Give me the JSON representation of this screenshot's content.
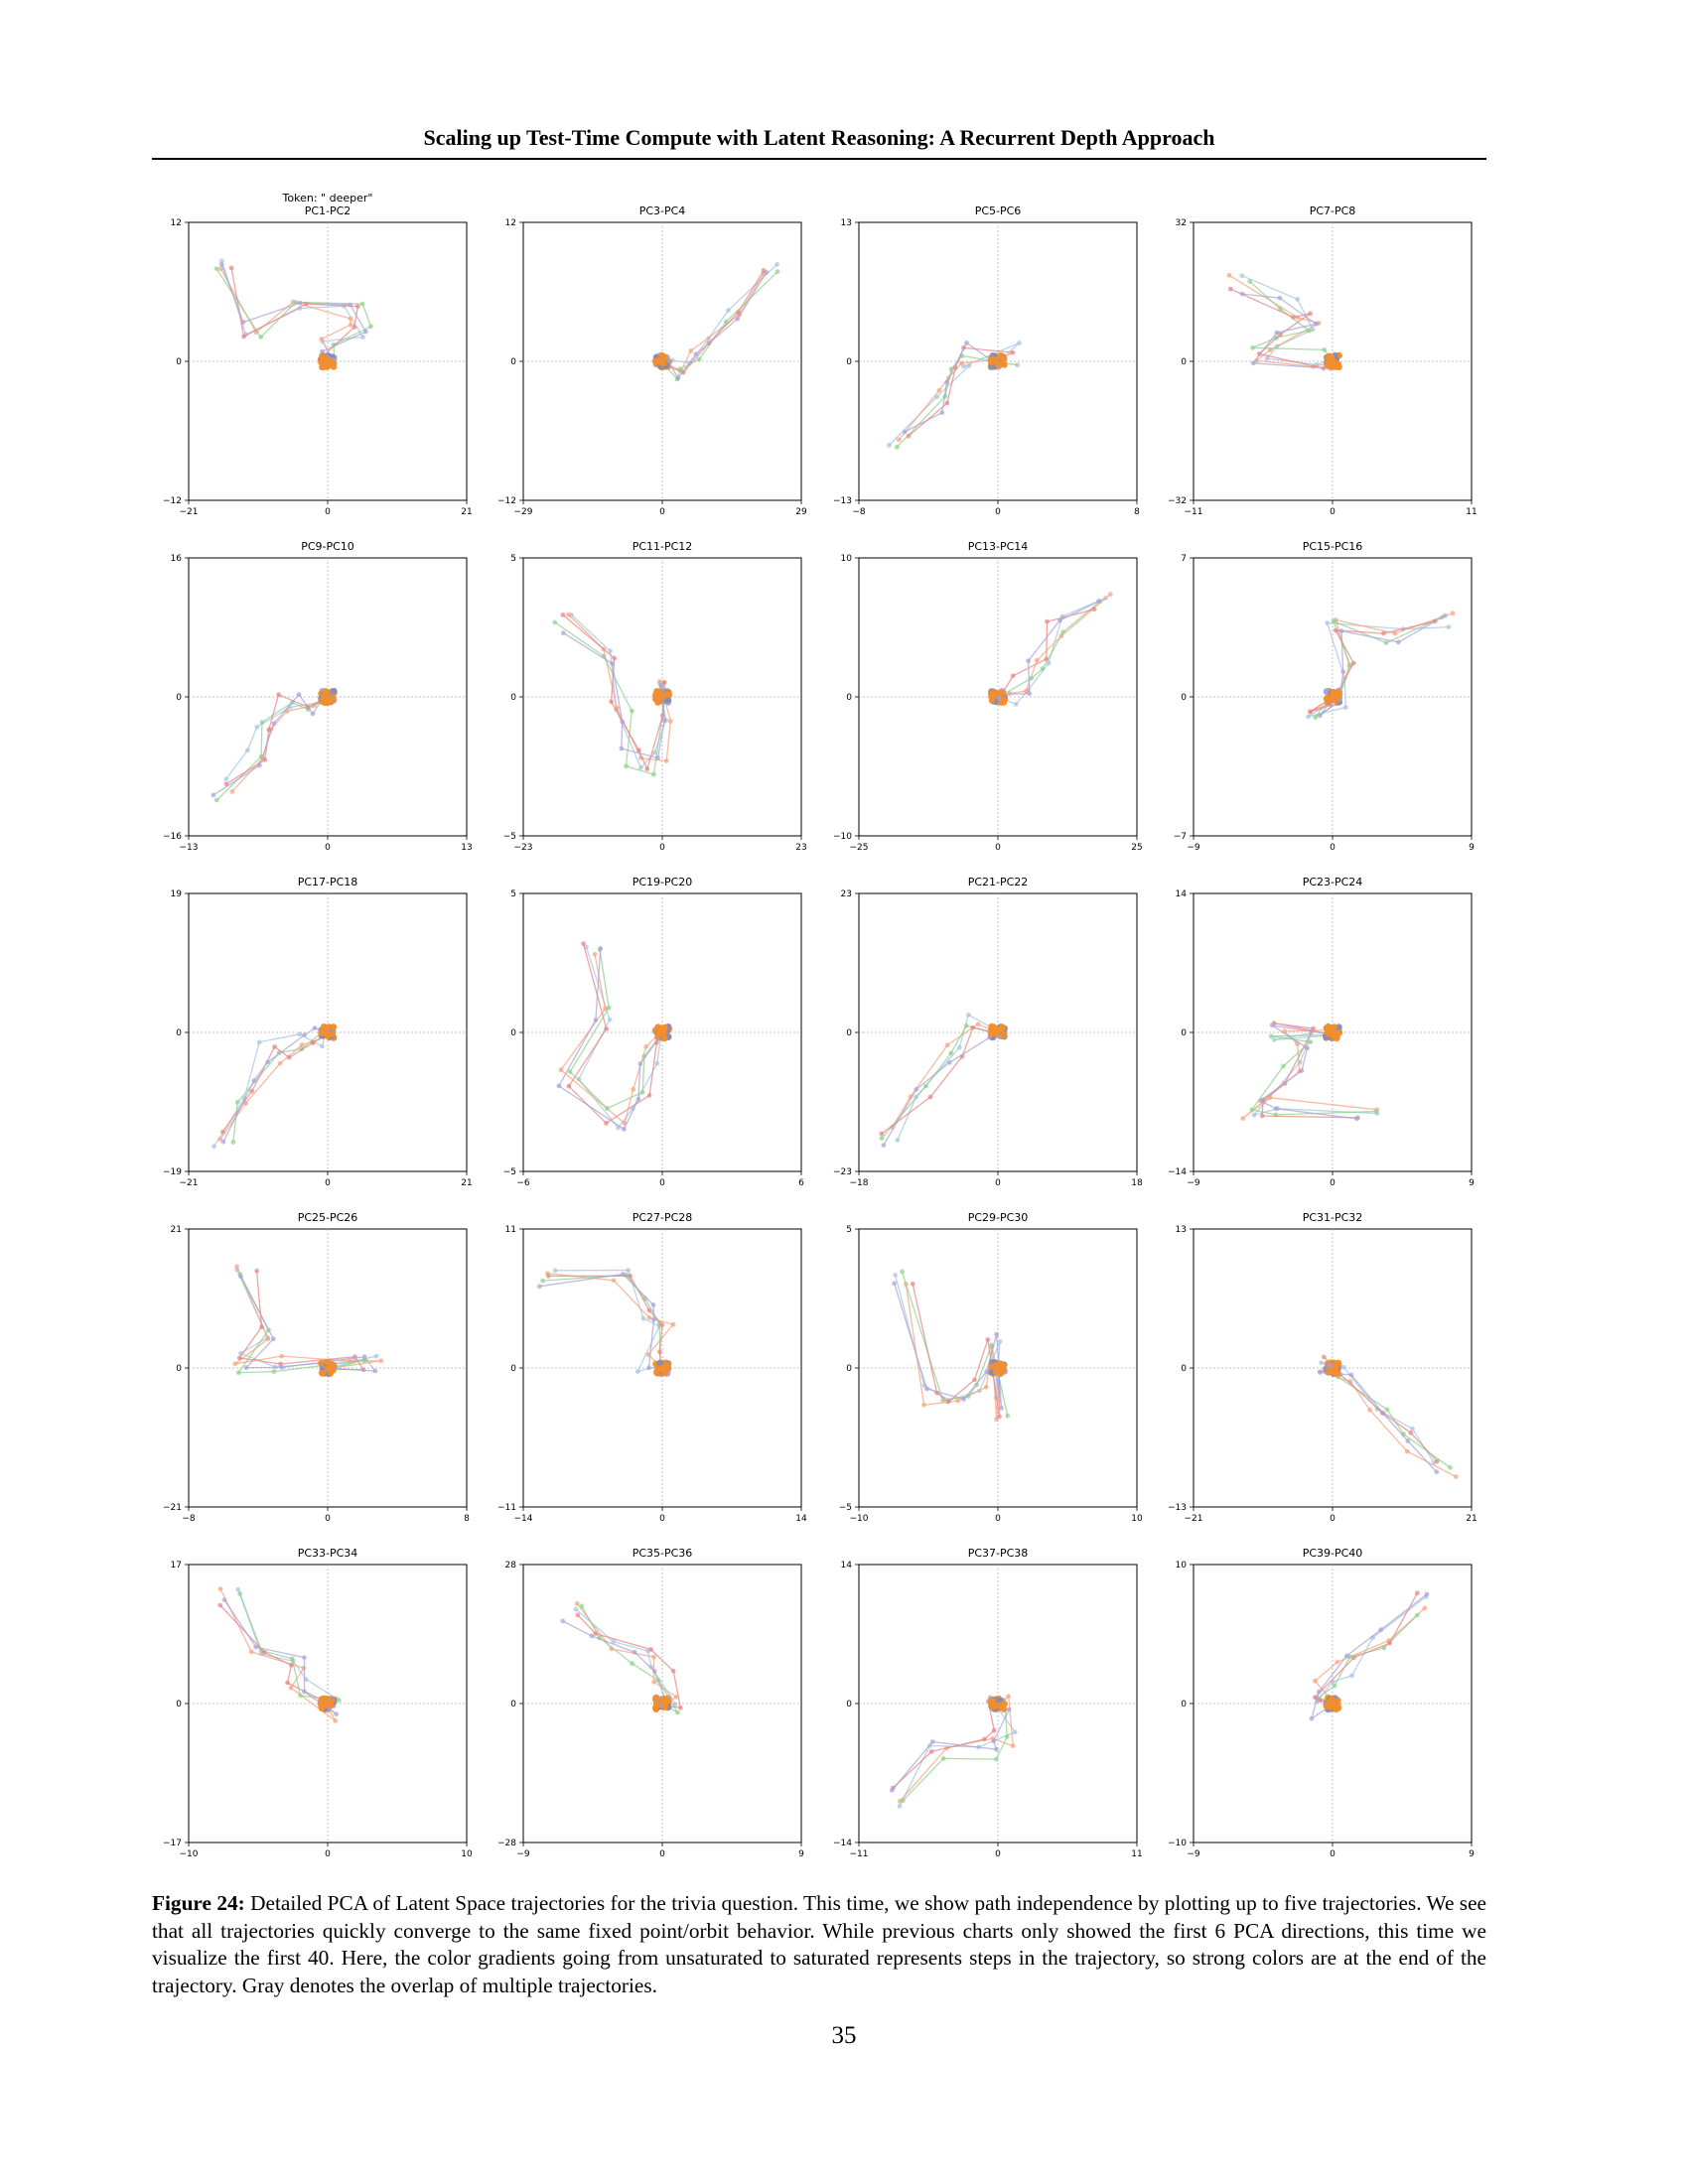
{
  "header": {
    "running_title": "Scaling up Test-Time Compute with Latent Reasoning: A Recurrent Depth Approach"
  },
  "figure": {
    "token_label": "Token: \" deeper\"",
    "colors": [
      "#a6c4e3",
      "#f7a47e",
      "#8fd18f",
      "#e78585",
      "#a9a3d8",
      "#f28e2b",
      "#8c8ca6"
    ],
    "panels": [
      {
        "title": "PC1-PC2",
        "xlim": [
          -21,
          21
        ],
        "ylim": [
          -12,
          12
        ],
        "xticks": [
          "−21",
          "0",
          "21"
        ],
        "yticks": [
          "12",
          "0",
          "−12"
        ],
        "pattern": "hook_left"
      },
      {
        "title": "PC3-PC4",
        "xlim": [
          -29,
          29
        ],
        "ylim": [
          -12,
          12
        ],
        "xticks": [
          "−29",
          "0",
          "29"
        ],
        "yticks": [
          "12",
          "0",
          "−12"
        ],
        "pattern": "diag_ne"
      },
      {
        "title": "PC5-PC6",
        "xlim": [
          -8,
          8
        ],
        "ylim": [
          -13,
          13
        ],
        "xticks": [
          "−8",
          "0",
          "8"
        ],
        "yticks": [
          "13",
          "0",
          "−13"
        ],
        "pattern": "fan_sw"
      },
      {
        "title": "PC7-PC8",
        "xlim": [
          -11,
          11
        ],
        "ylim": [
          -32,
          32
        ],
        "xticks": [
          "−11",
          "0",
          "11"
        ],
        "yticks": [
          "32",
          "0",
          "−32"
        ],
        "pattern": "z_left"
      },
      {
        "title": "PC9-PC10",
        "xlim": [
          -13,
          13
        ],
        "ylim": [
          -16,
          16
        ],
        "xticks": [
          "−13",
          "0",
          "13"
        ],
        "yticks": [
          "16",
          "0",
          "−16"
        ],
        "pattern": "s_sw"
      },
      {
        "title": "PC11-PC12",
        "xlim": [
          -23,
          23
        ],
        "ylim": [
          -5,
          5
        ],
        "xticks": [
          "−23",
          "0",
          "23"
        ],
        "yticks": [
          "5",
          "0",
          "−5"
        ],
        "pattern": "v_nw"
      },
      {
        "title": "PC13-PC14",
        "xlim": [
          -25,
          25
        ],
        "ylim": [
          -10,
          10
        ],
        "xticks": [
          "−25",
          "0",
          "25"
        ],
        "yticks": [
          "10",
          "0",
          "−10"
        ],
        "pattern": "diag_ne2"
      },
      {
        "title": "PC15-PC16",
        "xlim": [
          -9,
          9
        ],
        "ylim": [
          -7,
          7
        ],
        "xticks": [
          "−9",
          "0",
          "9"
        ],
        "yticks": [
          "7",
          "0",
          "−7"
        ],
        "pattern": "up_ne"
      },
      {
        "title": "PC17-PC18",
        "xlim": [
          -21,
          21
        ],
        "ylim": [
          -19,
          19
        ],
        "xticks": [
          "−21",
          "0",
          "21"
        ],
        "yticks": [
          "19",
          "0",
          "−19"
        ],
        "pattern": "diag_sw"
      },
      {
        "title": "PC19-PC20",
        "xlim": [
          -6,
          6
        ],
        "ylim": [
          -5,
          5
        ],
        "xticks": [
          "−6",
          "0",
          "6"
        ],
        "yticks": [
          "5",
          "0",
          "−5"
        ],
        "pattern": "loop_sw"
      },
      {
        "title": "PC21-PC22",
        "xlim": [
          -18,
          18
        ],
        "ylim": [
          -23,
          23
        ],
        "xticks": [
          "−18",
          "0",
          "18"
        ],
        "yticks": [
          "23",
          "0",
          "−23"
        ],
        "pattern": "diag_sw2"
      },
      {
        "title": "PC23-PC24",
        "xlim": [
          -9,
          9
        ],
        "ylim": [
          -14,
          14
        ],
        "xticks": [
          "−9",
          "0",
          "9"
        ],
        "yticks": [
          "14",
          "0",
          "−14"
        ],
        "pattern": "z_sw"
      },
      {
        "title": "PC25-PC26",
        "xlim": [
          -8,
          8
        ],
        "ylim": [
          -21,
          21
        ],
        "xticks": [
          "−8",
          "0",
          "8"
        ],
        "yticks": [
          "21",
          "0",
          "−21"
        ],
        "pattern": "flat_left"
      },
      {
        "title": "PC27-PC28",
        "xlim": [
          -14,
          14
        ],
        "ylim": [
          -11,
          11
        ],
        "xticks": [
          "−14",
          "0",
          "14"
        ],
        "yticks": [
          "11",
          "0",
          "−11"
        ],
        "pattern": "hook_nw"
      },
      {
        "title": "PC29-PC30",
        "xlim": [
          -10,
          10
        ],
        "ylim": [
          -5,
          5
        ],
        "xticks": [
          "−10",
          "0",
          "10"
        ],
        "yticks": [
          "5",
          "0",
          "−5"
        ],
        "pattern": "zigzag_w"
      },
      {
        "title": "PC31-PC32",
        "xlim": [
          -21,
          21
        ],
        "ylim": [
          -13,
          13
        ],
        "xticks": [
          "−21",
          "0",
          "21"
        ],
        "yticks": [
          "13",
          "0",
          "−13"
        ],
        "pattern": "diag_se"
      },
      {
        "title": "PC33-PC34",
        "xlim": [
          -10,
          10
        ],
        "ylim": [
          -17,
          17
        ],
        "xticks": [
          "−10",
          "0",
          "10"
        ],
        "yticks": [
          "17",
          "0",
          "−17"
        ],
        "pattern": "fan_nw"
      },
      {
        "title": "PC35-PC36",
        "xlim": [
          -9,
          9
        ],
        "ylim": [
          -28,
          28
        ],
        "xticks": [
          "−9",
          "0",
          "9"
        ],
        "yticks": [
          "28",
          "0",
          "−28"
        ],
        "pattern": "diag_nw"
      },
      {
        "title": "PC37-PC38",
        "xlim": [
          -11,
          11
        ],
        "ylim": [
          -14,
          14
        ],
        "xticks": [
          "−11",
          "0",
          "11"
        ],
        "yticks": [
          "14",
          "0",
          "−14"
        ],
        "pattern": "drop_sw"
      },
      {
        "title": "PC39-PC40",
        "xlim": [
          -9,
          9
        ],
        "ylim": [
          -10,
          10
        ],
        "xticks": [
          "−9",
          "0",
          "9"
        ],
        "yticks": [
          "10",
          "0",
          "−10"
        ],
        "pattern": "fan_ne"
      }
    ]
  },
  "caption": {
    "label": "Figure 24:",
    "text": " Detailed PCA of Latent Space trajectories for the trivia question. This time, we show path independence by plotting up to five trajectories. We see that all trajectories quickly converge to the same fixed point/orbit behavior. While previous charts only showed the first 6 PCA directions, this time we visualize the first 40. Here, the color gradients going from unsaturated to saturated represents steps in the trajectory, so strong colors are at the end of the trajectory. Gray denotes the overlap of multiple trajectories."
  },
  "page_number": "35"
}
